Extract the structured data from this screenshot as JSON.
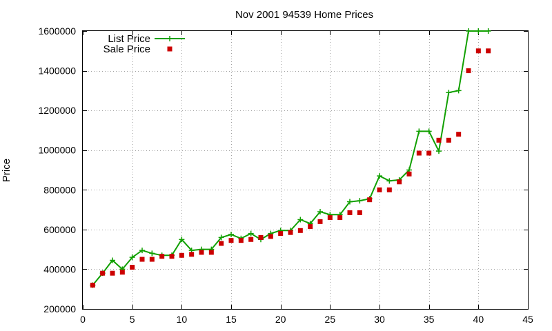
{
  "chart_data": {
    "type": "line",
    "title": "Nov 2001 94539 Home Prices",
    "xlabel": "",
    "ylabel": "Price",
    "xlim": [
      0,
      45
    ],
    "ylim": [
      200000,
      1600000
    ],
    "xticks": [
      "0",
      "5",
      "10",
      "15",
      "20",
      "25",
      "30",
      "35",
      "40",
      "45"
    ],
    "yticks": [
      "200000",
      "400000",
      "600000",
      "800000",
      "1000000",
      "1200000",
      "1400000",
      "1600000"
    ],
    "grid": true,
    "legend_position": "top-left",
    "series": [
      {
        "name": "List Price",
        "style": "line-with-plus-markers",
        "color": "#11a000",
        "x": [
          1,
          2,
          3,
          4,
          5,
          6,
          7,
          8,
          9,
          10,
          11,
          12,
          13,
          14,
          15,
          16,
          17,
          18,
          19,
          20,
          21,
          22,
          23,
          24,
          25,
          26,
          27,
          28,
          29,
          30,
          31,
          32,
          33,
          34,
          35,
          36,
          37,
          38,
          39,
          40,
          41
        ],
        "y": [
          320000,
          380000,
          445000,
          400000,
          460000,
          495000,
          480000,
          470000,
          470000,
          550000,
          495000,
          500000,
          500000,
          560000,
          575000,
          555000,
          580000,
          550000,
          580000,
          595000,
          595000,
          650000,
          630000,
          690000,
          675000,
          675000,
          740000,
          745000,
          755000,
          870000,
          845000,
          850000,
          900000,
          1095000,
          1095000,
          995000,
          1290000,
          1300000,
          1600000,
          1600000,
          1600000
        ]
      },
      {
        "name": "Sale Price",
        "style": "square-markers",
        "color": "#cc0000",
        "x": [
          1,
          2,
          3,
          4,
          5,
          6,
          7,
          8,
          9,
          10,
          11,
          12,
          13,
          14,
          15,
          16,
          17,
          18,
          19,
          20,
          21,
          22,
          23,
          24,
          25,
          26,
          27,
          28,
          29,
          30,
          31,
          32,
          33,
          34,
          35,
          36,
          37,
          38,
          39,
          40,
          41
        ],
        "y": [
          320000,
          380000,
          380000,
          385000,
          410000,
          450000,
          450000,
          465000,
          465000,
          470000,
          475000,
          485000,
          485000,
          530000,
          545000,
          545000,
          550000,
          560000,
          565000,
          580000,
          585000,
          595000,
          615000,
          640000,
          660000,
          660000,
          685000,
          685000,
          750000,
          800000,
          800000,
          840000,
          880000,
          985000,
          985000,
          1050000,
          1050000,
          1080000,
          1400000,
          1500000,
          1500000
        ]
      }
    ]
  }
}
